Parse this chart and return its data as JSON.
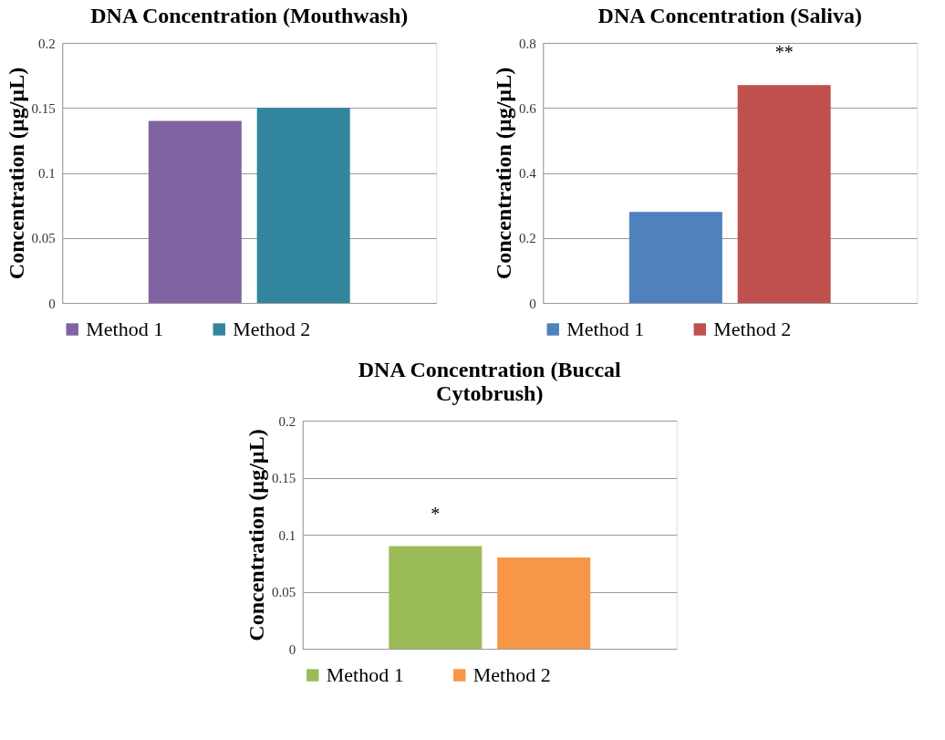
{
  "chart_data": [
    {
      "type": "bar",
      "title": "DNA Concentration (Mouthwash)",
      "ylabel": "Concentration (µg/µL)",
      "categories": [
        null
      ],
      "series": [
        {
          "name": "Method 1",
          "color": "#8064a2",
          "values": [
            0.14
          ]
        },
        {
          "name": "Method 2",
          "color": "#31859c",
          "values": [
            0.15
          ]
        }
      ],
      "ylim": [
        0,
        0.2
      ],
      "yticks": [
        0,
        0.05,
        0.1,
        0.15,
        0.2
      ],
      "grid": "y",
      "legend": "bottom",
      "tick_labels": "y"
    },
    {
      "type": "bar",
      "title": "DNA Concentration (Saliva)",
      "ylabel": "Concentration (µg/µL)",
      "categories": [
        null
      ],
      "series": [
        {
          "name": "Method 1",
          "color": "#4f81bd",
          "values": [
            0.28
          ]
        },
        {
          "name": "Method 2",
          "color": "#c0504d",
          "values": [
            0.67
          ]
        }
      ],
      "ylim": [
        0,
        0.8
      ],
      "yticks": [
        0,
        0.2,
        0.4,
        0.6,
        0.8
      ],
      "grid": "y",
      "legend": "bottom",
      "tick_labels": "y",
      "annotations": [
        "**"
      ]
    },
    {
      "type": "bar",
      "title": "DNA Concentration (Buccal Cytobrush)",
      "ylabel": "Concentration (µg/µL)",
      "categories": [
        null
      ],
      "series": [
        {
          "name": "Method 1",
          "color": "#9bbb59",
          "values": [
            0.09
          ]
        },
        {
          "name": "Method 2",
          "color": "#f79646",
          "values": [
            0.08
          ]
        }
      ],
      "ylim": [
        0,
        0.2
      ],
      "yticks": [
        0,
        0.05,
        0.1,
        0.15,
        0.2
      ],
      "grid": "y",
      "legend": "bottom",
      "tick_labels": "y",
      "annotations": [
        "*"
      ]
    }
  ]
}
